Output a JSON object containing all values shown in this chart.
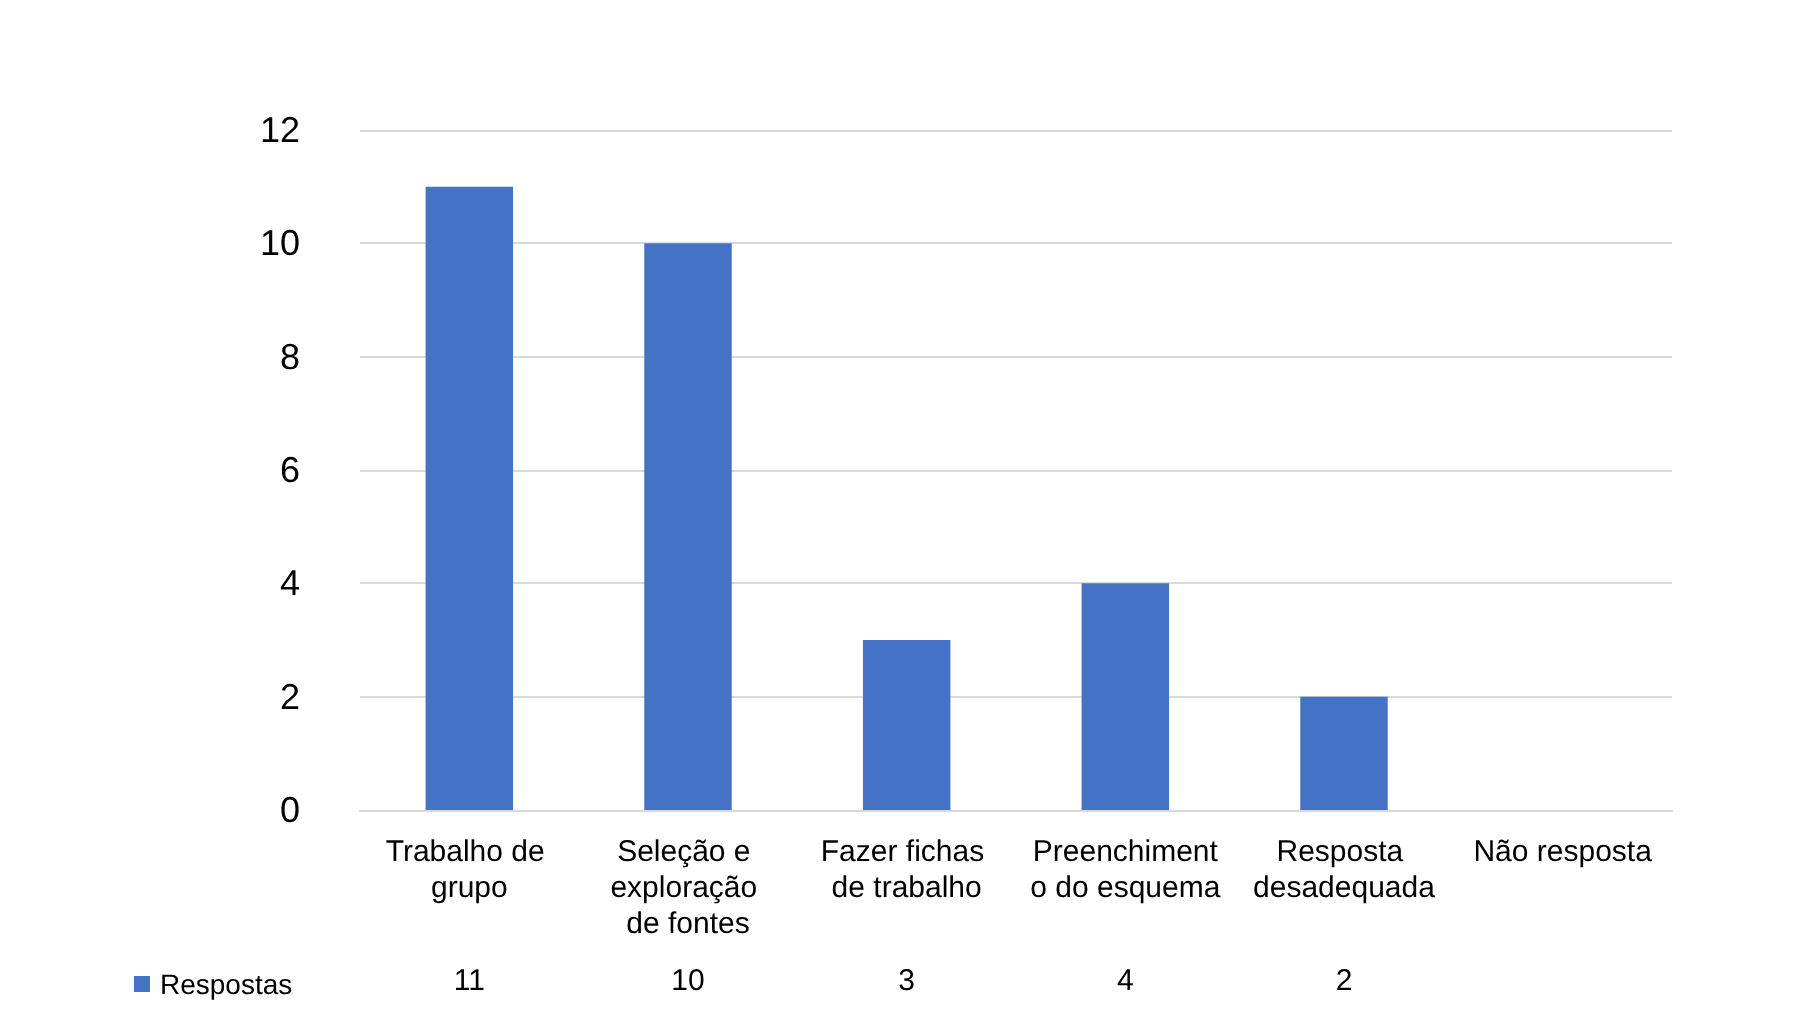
{
  "chart_data": {
    "type": "bar",
    "categories": [
      "Trabalho de grupo",
      "Seleção e exploração de fontes",
      "Fazer fichas de trabalho",
      "Preenchimento do esquema",
      "Resposta desadequada",
      "Não resposta"
    ],
    "series": [
      {
        "name": "Respostas",
        "color": "#4472c4",
        "values": [
          11,
          10,
          3,
          4,
          2,
          null
        ]
      }
    ],
    "ylim": [
      0,
      12
    ],
    "yticks": [
      0,
      2,
      4,
      6,
      8,
      10,
      12
    ],
    "grid": "y",
    "legend": "bottom left",
    "data_labels": true
  }
}
